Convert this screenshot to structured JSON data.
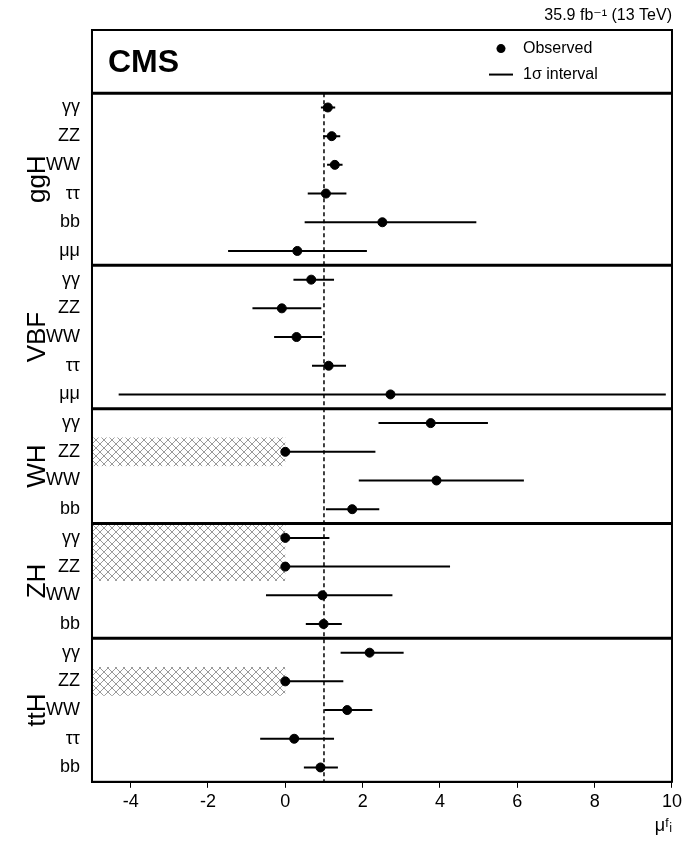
{
  "chart_data": {
    "type": "scatter",
    "title": "CMS",
    "subtitle": "35.9 fb⁻¹ (13 TeV)",
    "x_label": "μᶠᵢ",
    "xlim": [
      -5,
      10
    ],
    "xticks": [
      -4,
      -2,
      0,
      2,
      4,
      6,
      8,
      10
    ],
    "grid": false,
    "legend": "top right",
    "reference_x": 1,
    "panels": [
      {
        "label": "ggH",
        "categories": [
          "γγ",
          "ZZ",
          "WW",
          "ττ",
          "bb",
          "μμ"
        ],
        "hatched_below": [
          null,
          null,
          null,
          null,
          null,
          null
        ]
      },
      {
        "label": "VBF",
        "categories": [
          "γγ",
          "ZZ",
          "WW",
          "ττ",
          "μμ"
        ],
        "hatched_below": [
          null,
          null,
          null,
          null,
          null
        ]
      },
      {
        "label": "WH",
        "categories": [
          "γγ",
          "ZZ",
          "WW",
          "bb"
        ],
        "hatched_below": [
          null,
          0,
          null,
          null
        ]
      },
      {
        "label": "ZH",
        "categories": [
          "γγ",
          "ZZ",
          "WW",
          "bb"
        ],
        "hatched_below": [
          0,
          0,
          null,
          null
        ]
      },
      {
        "label": "ttH",
        "categories": [
          "γγ",
          "ZZ",
          "WW",
          "ττ",
          "bb"
        ],
        "hatched_below": [
          null,
          0,
          null,
          null,
          null
        ]
      }
    ],
    "series": [
      {
        "name": "Observed",
        "color": "#000000",
        "marker": "circle",
        "values": [
          1.1,
          1.2,
          1.28,
          1.05,
          2.51,
          0.31,
          0.67,
          -0.09,
          0.29,
          1.12,
          2.72,
          3.76,
          0.0,
          3.91,
          1.73,
          0.0,
          0.0,
          0.96,
          0.99,
          2.18,
          0.0,
          1.6,
          0.23,
          0.91
        ]
      },
      {
        "name": "1σ interval",
        "color": "#000000",
        "line_style": "solid",
        "low": [
          0.92,
          0.98,
          1.08,
          0.58,
          0.5,
          -1.48,
          0.21,
          -0.85,
          -0.29,
          0.69,
          -4.31,
          2.41,
          0.0,
          1.9,
          1.05,
          0.0,
          0.0,
          -0.5,
          0.53,
          1.43,
          0.0,
          1.01,
          -0.65,
          0.48
        ],
        "high": [
          1.29,
          1.42,
          1.48,
          1.58,
          4.94,
          2.11,
          1.26,
          0.93,
          0.95,
          1.57,
          9.84,
          5.24,
          2.33,
          6.17,
          2.43,
          1.14,
          4.26,
          2.77,
          1.46,
          3.06,
          1.5,
          2.25,
          1.26,
          1.36
        ]
      }
    ]
  }
}
